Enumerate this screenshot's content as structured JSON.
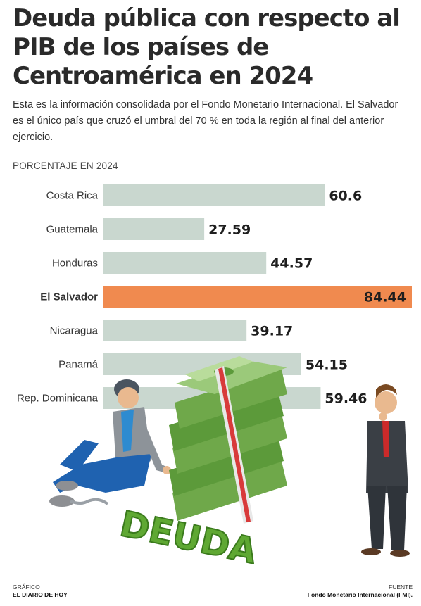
{
  "title": "Deuda pública con respecto al PIB de los países de Centroamérica en 2024",
  "subtitle": "Esta es la información consolidada por el Fondo Monetario Internacional. El Salvador es el único país que cruzó el umbral del 70 % en toda la región al final del anterior ejercicio.",
  "unit_label": "PORCENTAJE EN 2024",
  "illustration_text": "DEUDA",
  "credits": {
    "grafico_label": "GRÁFICO",
    "grafico_value": "EL DIARIO DE HOY",
    "fuente_label": "FUENTE",
    "fuente_value": "Fondo Monetario Internacional (FMI)."
  },
  "colors": {
    "bar": "#c9d7cf",
    "highlight": "#f08a4f",
    "money_green": "#5c9a3a",
    "letters_green": "#7bc142"
  },
  "chart_data": {
    "type": "bar",
    "orientation": "horizontal",
    "categories": [
      "Costa Rica",
      "Guatemala",
      "Honduras",
      "El Salvador",
      "Nicaragua",
      "Panamá",
      "Rep. Dominicana"
    ],
    "values": [
      60.6,
      27.59,
      44.57,
      84.44,
      39.17,
      54.15,
      59.46
    ],
    "value_labels": [
      "60.6",
      "27.59",
      "44.57",
      "84.44",
      "39.17",
      "54.15",
      "59.46"
    ],
    "highlight": "El Salvador",
    "xlim": [
      0,
      84.44
    ],
    "grid": false
  }
}
